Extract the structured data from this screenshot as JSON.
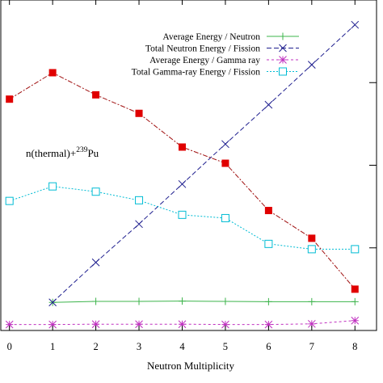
{
  "chart_data": {
    "type": "line",
    "xlabel": "Neutron Multiplicity",
    "ylabel": "",
    "title": "",
    "xlim": [
      -0.2,
      8.5
    ],
    "ylim": [
      0,
      1
    ],
    "x_ticks": [
      "0",
      "1",
      "2",
      "3",
      "4",
      "5",
      "6",
      "7",
      "8"
    ],
    "annotation": {
      "prefix": "n(thermal)+",
      "superscript": "239",
      "suffix": "Pu"
    },
    "legend_position": "top-right",
    "grid": false,
    "series": [
      {
        "name": "Average Energy / Neutron",
        "color": "#3cb44b",
        "marker": "plus",
        "dash": "",
        "x": [
          1,
          2,
          3,
          4,
          5,
          6,
          7,
          8
        ],
        "y": [
          0.085,
          0.088,
          0.088,
          0.089,
          0.088,
          0.087,
          0.087,
          0.087
        ]
      },
      {
        "name": "Total Neutron Energy / Fission",
        "color": "#1f1f8f",
        "marker": "x",
        "dash": "6,3",
        "x": [
          1,
          2,
          3,
          4,
          5,
          6,
          7,
          8
        ],
        "y": [
          0.085,
          0.206,
          0.322,
          0.443,
          0.564,
          0.683,
          0.804,
          0.925
        ]
      },
      {
        "name": "Average Energy / Gamma ray",
        "color": "#c030c0",
        "marker": "star",
        "dash": "3,3",
        "x": [
          0,
          1,
          2,
          3,
          4,
          5,
          6,
          7,
          8
        ],
        "y": [
          0.018,
          0.018,
          0.019,
          0.019,
          0.019,
          0.018,
          0.018,
          0.02,
          0.03
        ]
      },
      {
        "name": "Total Gamma-ray Energy / Fission",
        "color": "#00bcd4",
        "marker": "square-open",
        "dash": "2,2",
        "x": [
          0,
          1,
          2,
          3,
          4,
          5,
          6,
          7,
          8
        ],
        "y": [
          0.392,
          0.436,
          0.42,
          0.394,
          0.35,
          0.34,
          0.262,
          0.246,
          0.246
        ]
      },
      {
        "name": "",
        "color": "#a01010",
        "fill": "#e00000",
        "marker": "square-filled",
        "dash": "6,2,2,2",
        "x": [
          0,
          1,
          2,
          3,
          4,
          5,
          6,
          7,
          8
        ],
        "y": [
          0.7,
          0.78,
          0.713,
          0.657,
          0.555,
          0.506,
          0.363,
          0.279,
          0.125
        ]
      }
    ]
  }
}
